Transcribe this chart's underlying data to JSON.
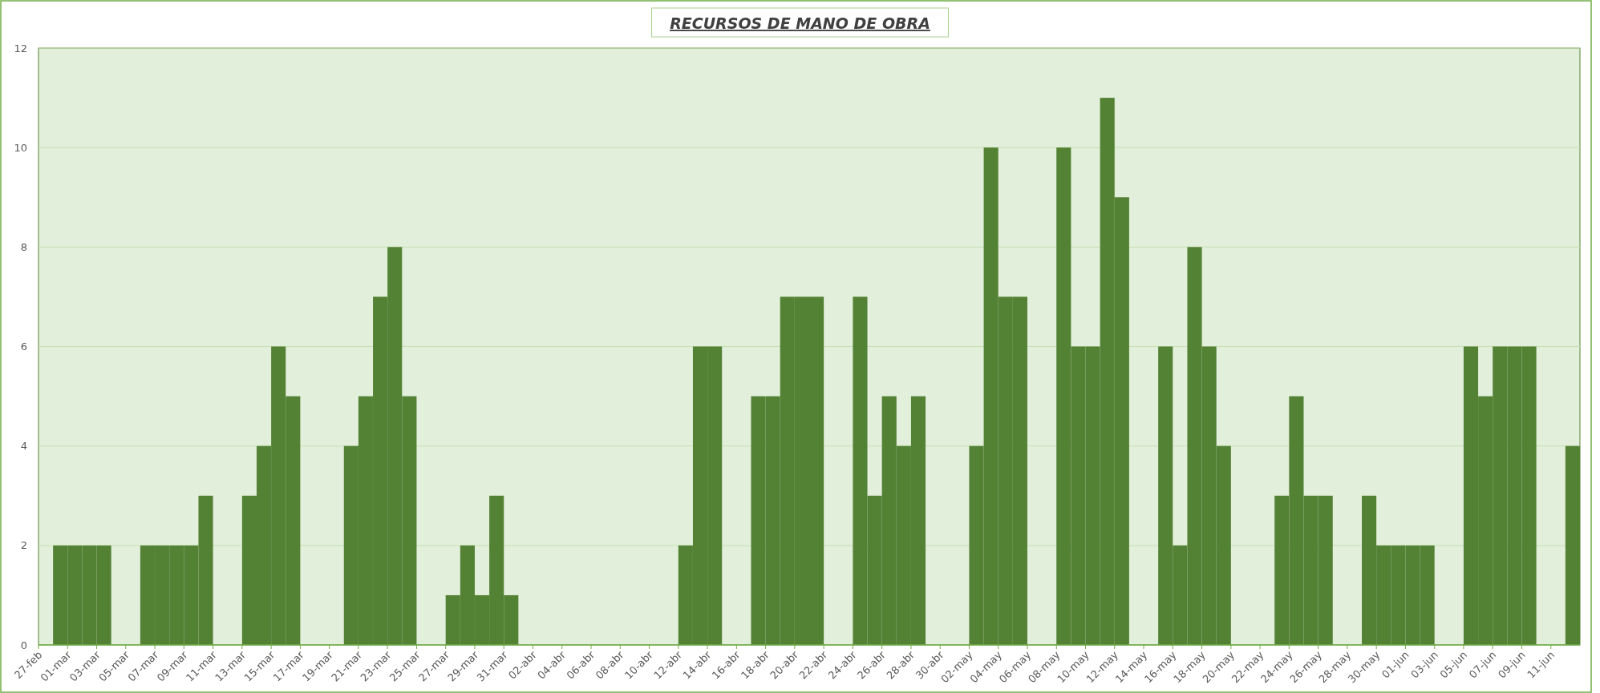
{
  "chart_data": {
    "type": "bar",
    "title": "RECURSOS DE MANO DE OBRA",
    "categories": [
      "27-feb",
      null,
      "01-mar",
      null,
      "03-mar",
      null,
      "05-mar",
      null,
      "07-mar",
      null,
      "09-mar",
      null,
      "11-mar",
      null,
      "13-mar",
      null,
      "15-mar",
      null,
      "17-mar",
      null,
      "19-mar",
      null,
      "21-mar",
      null,
      "23-mar",
      null,
      "25-mar",
      null,
      "27-mar",
      null,
      "29-mar",
      null,
      "31-mar",
      null,
      "02-abr",
      null,
      "04-abr",
      null,
      "06-abr",
      null,
      "08-abr",
      null,
      "10-abr",
      null,
      "12-abr",
      null,
      "14-abr",
      null,
      "16-abr",
      null,
      "18-abr",
      null,
      "20-abr",
      null,
      "22-abr",
      null,
      "24-abr",
      null,
      "26-abr",
      null,
      "28-abr",
      null,
      "30-abr",
      null,
      "02-may",
      null,
      "04-may",
      null,
      "06-may",
      null,
      "08-may",
      null,
      "10-may",
      null,
      "12-may",
      null,
      "14-may",
      null,
      "16-may",
      null,
      "18-may",
      null,
      "20-may",
      null,
      "22-may",
      null,
      "24-may",
      null,
      "26-may",
      null,
      "28-may",
      null,
      "30-may",
      null,
      "01-jun",
      null,
      "03-jun",
      null,
      "05-jun",
      null,
      "07-jun",
      null,
      "09-jun",
      null,
      "11-jun",
      null
    ],
    "values": [
      0,
      2,
      2,
      2,
      2,
      0,
      0,
      2,
      2,
      2,
      2,
      3,
      0,
      0,
      3,
      4,
      6,
      5,
      0,
      0,
      0,
      4,
      5,
      7,
      8,
      5,
      0,
      0,
      1,
      2,
      1,
      3,
      1,
      0,
      0,
      0,
      0,
      0,
      0,
      0,
      0,
      0,
      0,
      0,
      2,
      6,
      6,
      0,
      0,
      5,
      5,
      7,
      7,
      7,
      0,
      0,
      7,
      3,
      5,
      4,
      5,
      0,
      0,
      0,
      4,
      10,
      7,
      7,
      0,
      0,
      10,
      6,
      6,
      11,
      9,
      0,
      0,
      6,
      2,
      8,
      6,
      4,
      0,
      0,
      0,
      3,
      5,
      3,
      3,
      0,
      0,
      3,
      2,
      2,
      2,
      2,
      0,
      0,
      6,
      5,
      6,
      6,
      6,
      0,
      0,
      4
    ],
    "color": "#548235",
    "ylim": [
      0,
      12
    ],
    "yticks": [
      0,
      2,
      4,
      6,
      8,
      10,
      12
    ],
    "grid": "y"
  }
}
